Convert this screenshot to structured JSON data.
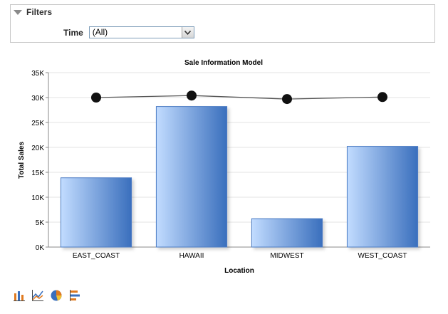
{
  "filters": {
    "title": "Filters",
    "time_label": "Time",
    "time_value": "(All)"
  },
  "chart_data": {
    "type": "bar",
    "title": "Sale Information Model",
    "xlabel": "Location",
    "ylabel": "Total Sales",
    "categories": [
      "EAST_COAST",
      "HAWAII",
      "MIDWEST",
      "WEST_COAST"
    ],
    "ylim": [
      0,
      35000
    ],
    "yticks": [
      0,
      5000,
      10000,
      15000,
      20000,
      25000,
      30000,
      35000
    ],
    "ytick_labels": [
      "0K",
      "5K",
      "10K",
      "15K",
      "20K",
      "25K",
      "30K",
      "35K"
    ],
    "grid": true,
    "series": [
      {
        "type": "bar",
        "values": [
          13900,
          28200,
          5700,
          20200
        ]
      },
      {
        "type": "line",
        "values": [
          30000,
          30400,
          29700,
          30100
        ]
      }
    ],
    "colors": {
      "bar_light": "#c2dcff",
      "bar_dark": "#3a6fbd",
      "line": "#555555",
      "marker": "#111111",
      "grid": "#e3e3e3"
    }
  },
  "view_icons": [
    "bar-chart-icon",
    "line-chart-icon",
    "pie-chart-icon",
    "horizontal-bar-icon"
  ]
}
